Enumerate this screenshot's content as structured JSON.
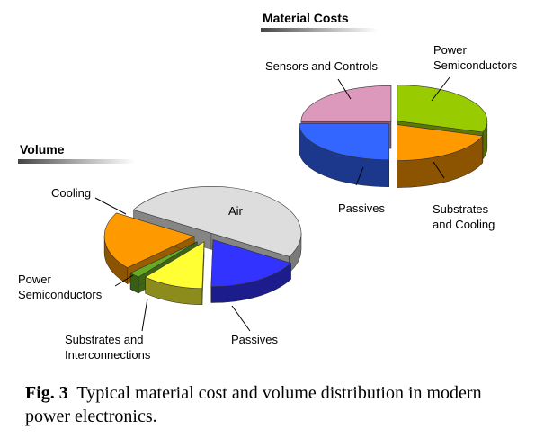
{
  "chart_data": [
    {
      "type": "pie",
      "title": "Material Costs",
      "categories": [
        "Power Semiconductors",
        "Substrates and Cooling",
        "Passives",
        "Sensors and Controls"
      ],
      "values": [
        30,
        20,
        25,
        25
      ],
      "colors": {
        "Power Semiconductors": "#99cc00",
        "Substrates and Cooling": "#ff9900",
        "Passives": "#3366ff",
        "Sensors and Controls": "#dd99bb"
      },
      "labels": {
        "Power Semiconductors": [
          "Power",
          "Semiconductors"
        ],
        "Substrates and Cooling": [
          "Substrates",
          "and Cooling"
        ],
        "Passives": [
          "Passives"
        ],
        "Sensors and Controls": [
          "Sensors and Controls"
        ]
      }
    },
    {
      "type": "pie",
      "title": "Volume",
      "categories": [
        "Air",
        "Passives",
        "Substrates and Interconnections",
        "Power Semiconductors",
        "Cooling"
      ],
      "values": [
        50,
        17,
        11,
        2,
        20
      ],
      "colors": {
        "Air": "#dddddd",
        "Passives": "#3333ff",
        "Substrates and Interconnections": "#ffff33",
        "Power Semiconductors": "#66aa22",
        "Cooling": "#ff9900"
      },
      "labels": {
        "Air": [
          "Air"
        ],
        "Passives": [
          "Passives"
        ],
        "Substrates and Interconnections": [
          "Substrates and",
          "Interconnections"
        ],
        "Power Semiconductors": [
          "Power",
          "Semiconductors"
        ],
        "Cooling": [
          "Cooling"
        ]
      }
    }
  ],
  "caption": {
    "fig_label": "Fig. 3",
    "text": "Typical material cost and volume distribution in modern power electronics."
  }
}
